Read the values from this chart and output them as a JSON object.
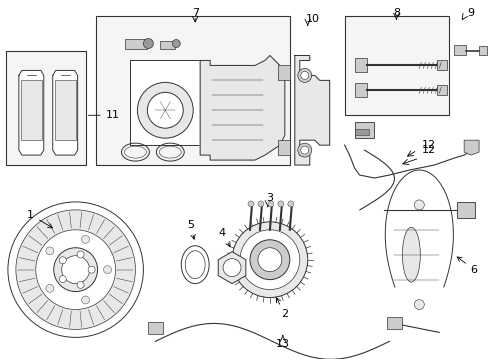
{
  "background_color": "#ffffff",
  "fig_width": 4.89,
  "fig_height": 3.6,
  "dpi": 100,
  "line_color": "#333333",
  "fill_light": "#e8e8e8",
  "fill_med": "#cccccc",
  "fill_dark": "#999999"
}
